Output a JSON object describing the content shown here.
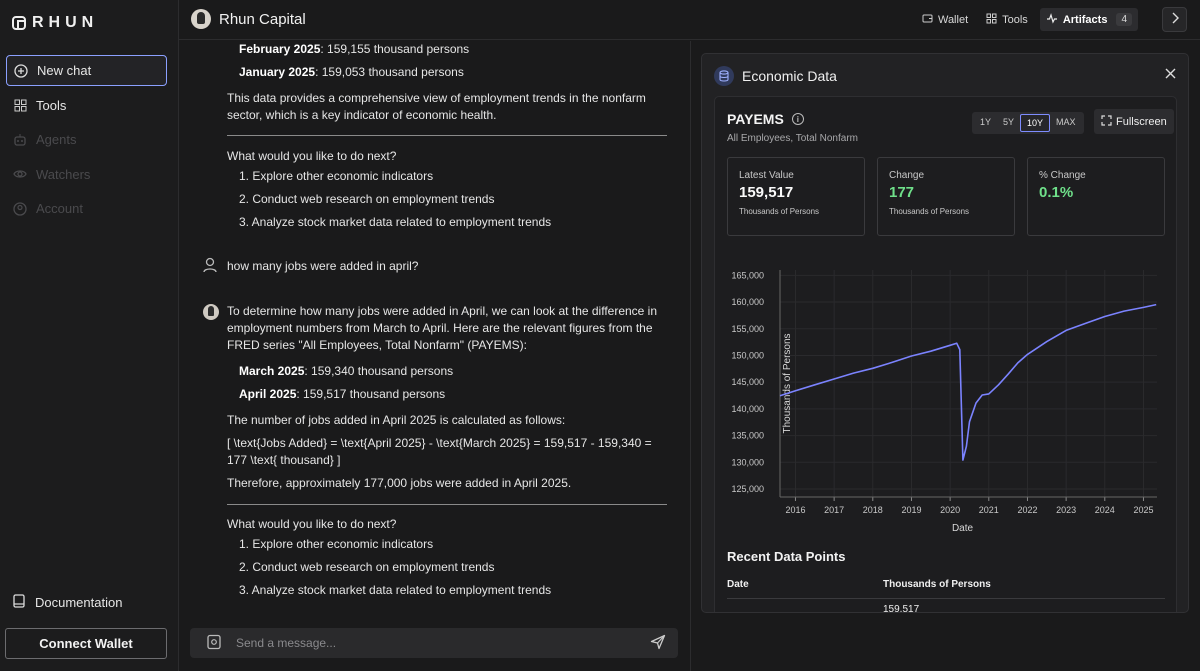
{
  "app": {
    "logo_text": "RHUN",
    "brand": "Rhun Capital"
  },
  "sidebar": {
    "items": [
      {
        "label": "New chat",
        "icon": "plus-circle-icon"
      },
      {
        "label": "Tools",
        "icon": "grid-icon"
      },
      {
        "label": "Agents",
        "icon": "robot-icon"
      },
      {
        "label": "Watchers",
        "icon": "eye-icon"
      },
      {
        "label": "Account",
        "icon": "user-circle-icon"
      }
    ],
    "documentation": "Documentation",
    "connect_wallet": "Connect Wallet"
  },
  "topbar": {
    "wallet": "Wallet",
    "tools": "Tools",
    "artifacts": "Artifacts",
    "artifacts_count": "4"
  },
  "chat": {
    "prev_feb_label": "February 2025",
    "prev_feb_value": ": 159,155 thousand persons",
    "prev_jan_label": "January 2025",
    "prev_jan_value": ": 159,053 thousand persons",
    "prev_summary_1": "This data provides a comprehensive view of employment trends in the nonfarm",
    "prev_summary_2": "sector, which is a key indicator of economic health.",
    "next_q_1": "What would you like to do next?",
    "next_opts_1": [
      "1. Explore other economic indicators",
      "2. Conduct web research on employment trends",
      "3. Analyze stock market data related to employment trends"
    ],
    "user_msg": "how many jobs were added in april?",
    "resp_1": "To determine how many jobs were added in April, we can look at the difference in",
    "resp_2": "employment numbers from March to April. Here are the relevant figures from the",
    "resp_3": "FRED series \"All Employees, Total Nonfarm\" (PAYEMS):",
    "mar_label": "March 2025",
    "mar_value": ": 159,340 thousand persons",
    "apr_label": "April 2025",
    "apr_value": ": 159,517 thousand persons",
    "calc_intro": "The number of jobs added in April 2025 is calculated as follows:",
    "formula_1": "[ \\text{Jobs Added} = \\text{April 2025} - \\text{March 2025} = 159,517 - 159,340 =",
    "formula_2": "177 \\text{ thousand} ]",
    "conclusion": "Therefore, approximately 177,000 jobs were added in April 2025.",
    "next_q_2": "What would you like to do next?",
    "next_opts_2": [
      "1. Explore other economic indicators",
      "2. Conduct web research on employment trends",
      "3. Analyze stock market data related to employment trends"
    ],
    "composer_placeholder": "Send a message..."
  },
  "artifact": {
    "title": "Economic Data",
    "series_id": "PAYEMS",
    "series_desc": "All Employees, Total Nonfarm",
    "ranges": [
      "1Y",
      "5Y",
      "10Y",
      "MAX"
    ],
    "active_range": "10Y",
    "fullscreen": "Fullscreen",
    "stats": [
      {
        "label": "Latest Value",
        "value": "159,517",
        "unit": "Thousands of Persons"
      },
      {
        "label": "Change",
        "value": "177",
        "unit": "Thousands of Persons"
      },
      {
        "label": "% Change",
        "value": "0.1%",
        "unit": ""
      }
    ],
    "recent_title": "Recent Data Points",
    "table_headers": [
      "Date",
      "Thousands of Persons"
    ],
    "table_rows": [
      [
        "",
        "159,517"
      ]
    ]
  },
  "chart_data": {
    "type": "line",
    "title": "",
    "xlabel": "Date",
    "ylabel": "Thousands of Persons",
    "xlim": [
      2015.6,
      2025.35
    ],
    "ylim": [
      123500,
      166000
    ],
    "x_ticks": [
      2016,
      2017,
      2018,
      2019,
      2020,
      2021,
      2022,
      2023,
      2024,
      2025
    ],
    "y_ticks": [
      125000,
      130000,
      135000,
      140000,
      145000,
      150000,
      155000,
      160000,
      165000
    ],
    "y_tick_labels": [
      "125,000",
      "130,000",
      "135,000",
      "140,000",
      "145,000",
      "150,000",
      "155,000",
      "160,000",
      "165,000"
    ],
    "grid": true,
    "series": [
      {
        "color": "#7b83ff",
        "x": [
          2015.33,
          2015.75,
          2016.0,
          2016.5,
          2017.0,
          2017.5,
          2018.0,
          2018.5,
          2019.0,
          2019.5,
          2020.0,
          2020.17,
          2020.25,
          2020.33,
          2020.42,
          2020.5,
          2020.67,
          2020.83,
          2021.0,
          2021.25,
          2021.5,
          2021.75,
          2022.0,
          2022.5,
          2023.0,
          2023.5,
          2024.0,
          2024.5,
          2025.0,
          2025.33
        ],
        "y": [
          141800,
          142800,
          143400,
          144500,
          145600,
          146700,
          147600,
          148700,
          149900,
          150800,
          151900,
          152300,
          151100,
          130400,
          133000,
          137600,
          141100,
          142600,
          142800,
          144500,
          146500,
          148600,
          150200,
          152600,
          154700,
          156000,
          157300,
          158300,
          159000,
          159517
        ]
      }
    ]
  }
}
